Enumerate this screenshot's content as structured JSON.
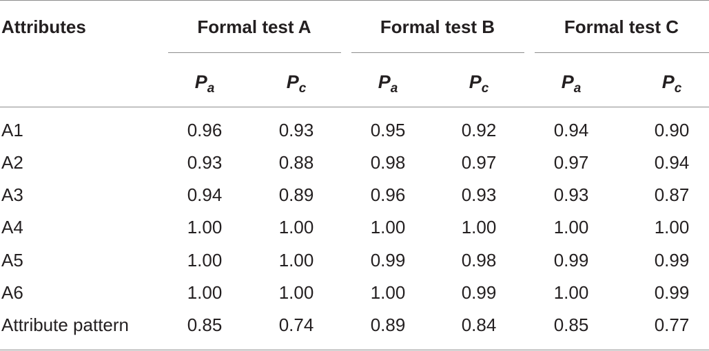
{
  "table": {
    "header": {
      "attributes_label": "Attributes",
      "groups": [
        {
          "label": "Formal test A",
          "sub": [
            {
              "base": "P",
              "sub": "a"
            },
            {
              "base": "P",
              "sub": "c"
            }
          ]
        },
        {
          "label": "Formal test B",
          "sub": [
            {
              "base": "P",
              "sub": "a"
            },
            {
              "base": "P",
              "sub": "c"
            }
          ]
        },
        {
          "label": "Formal test C",
          "sub": [
            {
              "base": "P",
              "sub": "a"
            },
            {
              "base": "P",
              "sub": "c"
            }
          ]
        }
      ]
    },
    "rows": [
      {
        "label": "A1",
        "values": [
          "0.96",
          "0.93",
          "0.95",
          "0.92",
          "0.94",
          "0.90"
        ]
      },
      {
        "label": "A2",
        "values": [
          "0.93",
          "0.88",
          "0.98",
          "0.97",
          "0.97",
          "0.94"
        ]
      },
      {
        "label": "A3",
        "values": [
          "0.94",
          "0.89",
          "0.96",
          "0.93",
          "0.93",
          "0.87"
        ]
      },
      {
        "label": "A4",
        "values": [
          "1.00",
          "1.00",
          "1.00",
          "1.00",
          "1.00",
          "1.00"
        ]
      },
      {
        "label": "A5",
        "values": [
          "1.00",
          "1.00",
          "0.99",
          "0.98",
          "0.99",
          "0.99"
        ]
      },
      {
        "label": "A6",
        "values": [
          "1.00",
          "1.00",
          "1.00",
          "0.99",
          "1.00",
          "0.99"
        ]
      },
      {
        "label": "Attribute pattern",
        "values": [
          "0.85",
          "0.74",
          "0.89",
          "0.84",
          "0.85",
          "0.77"
        ]
      }
    ]
  }
}
